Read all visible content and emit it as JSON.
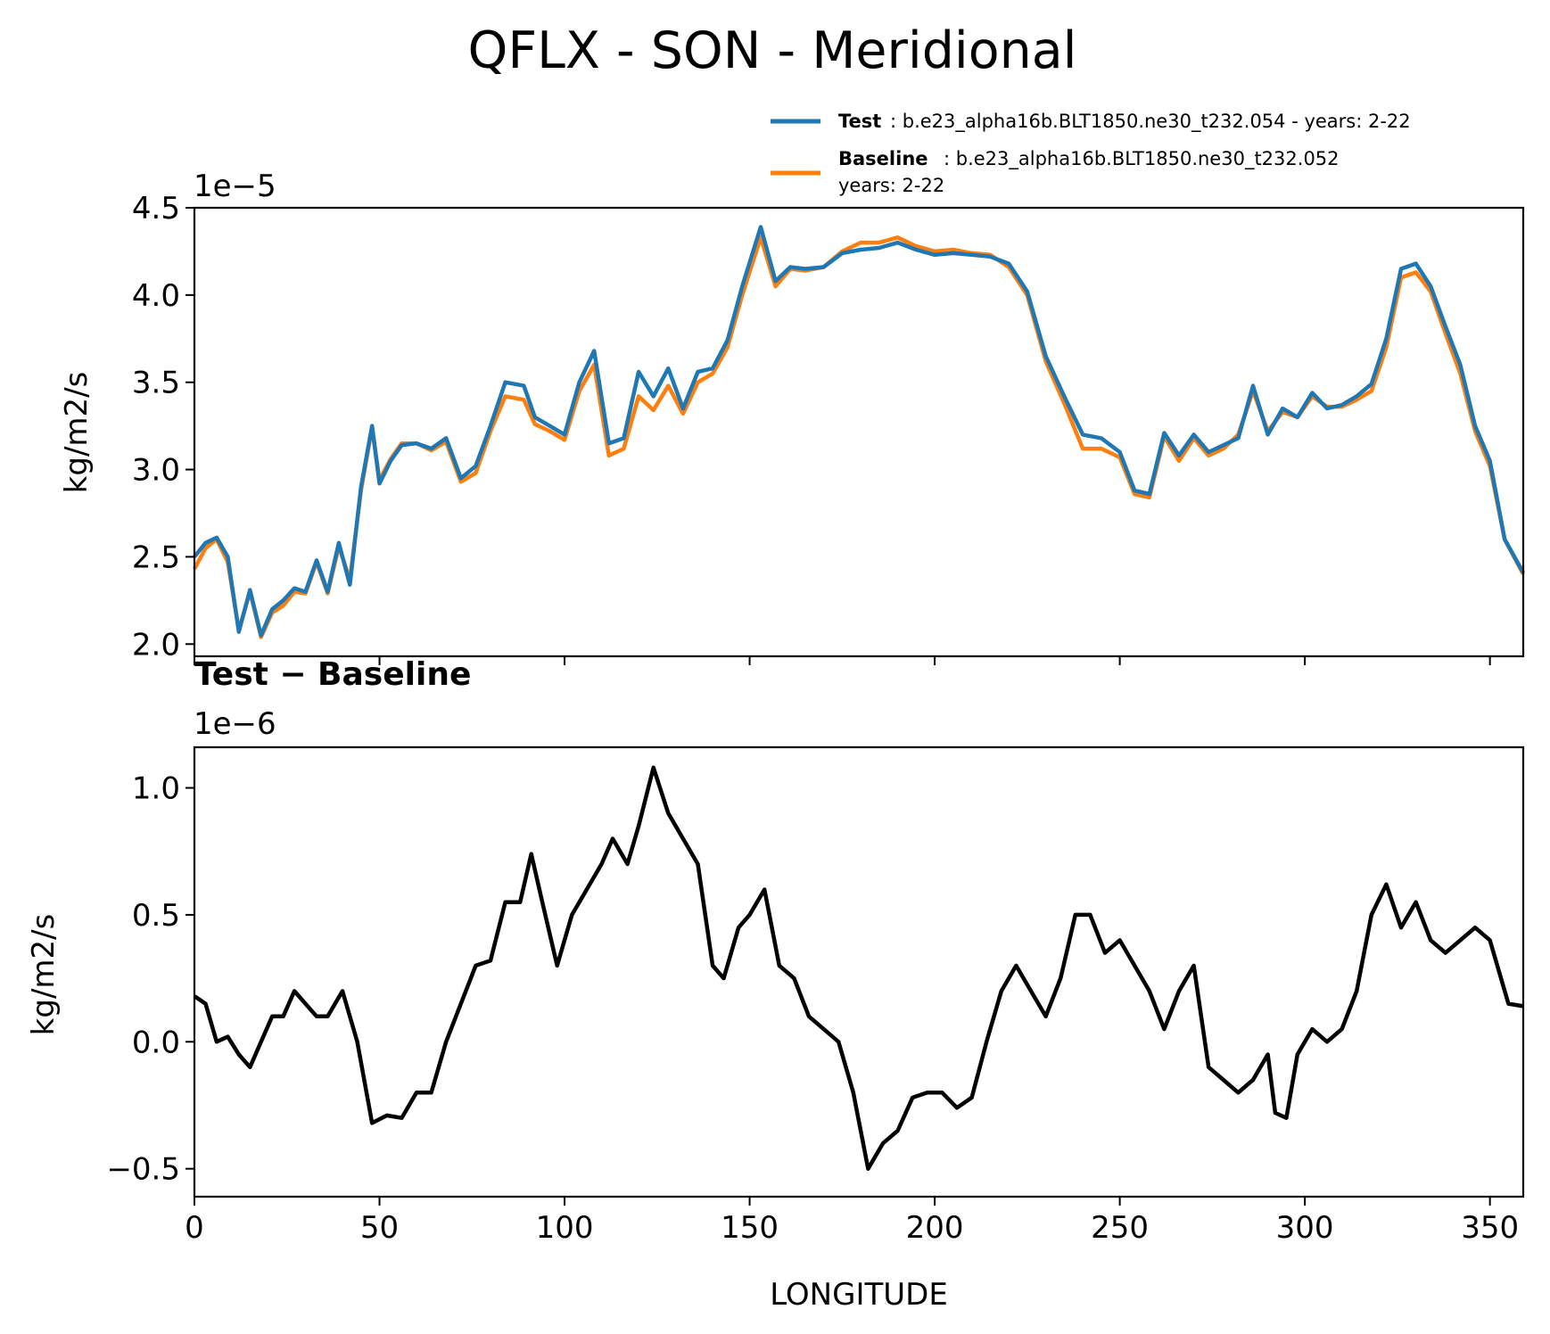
{
  "chart_data": [
    {
      "type": "line",
      "title": "QFLX - SON - Meridional",
      "xlabel": "",
      "ylabel": "kg/m2/s",
      "offset_text": "1e−5",
      "xlim": [
        0,
        359
      ],
      "ylim": [
        1.93,
        4.5
      ],
      "xticks": [
        0,
        50,
        100,
        150,
        200,
        250,
        300,
        350
      ],
      "yticks": [
        2.0,
        2.5,
        3.0,
        3.5,
        4.0,
        4.5
      ],
      "ytick_labels": [
        "2.0",
        "2.5",
        "3.0",
        "3.5",
        "4.0",
        "4.5"
      ],
      "legend": {
        "position": "upper-right",
        "entries": [
          {
            "name": "Test",
            "text": ": b.e23_alpha16b.BLT1850.ne30_t232.054 - years: 2-22",
            "color": "#1f77b4"
          },
          {
            "name": "Baseline",
            "text": ": b.e23_alpha16b.BLT1850.ne30_t232.052",
            "text2": "years: 2-22",
            "color": "#ff7f0e"
          }
        ]
      },
      "series": [
        {
          "name": "Test",
          "color": "#1f77b4",
          "x": [
            0,
            3,
            6,
            9,
            12,
            15,
            18,
            21,
            24,
            27,
            30,
            33,
            36,
            39,
            42,
            45,
            48,
            50,
            53,
            56,
            60,
            64,
            68,
            72,
            76,
            80,
            84,
            89,
            92,
            96,
            100,
            104,
            108,
            112,
            116,
            120,
            124,
            128,
            132,
            136,
            140,
            144,
            148,
            153,
            157,
            161,
            165,
            170,
            175,
            180,
            185,
            190,
            195,
            200,
            205,
            210,
            215,
            220,
            225,
            230,
            235,
            240,
            245,
            250,
            254,
            258,
            262,
            266,
            270,
            274,
            278,
            282,
            286,
            290,
            294,
            298,
            302,
            306,
            310,
            314,
            318,
            322,
            326,
            330,
            334,
            338,
            342,
            346,
            350,
            354,
            359
          ],
          "values": [
            2.5,
            2.58,
            2.61,
            2.5,
            2.07,
            2.31,
            2.05,
            2.2,
            2.25,
            2.32,
            2.3,
            2.48,
            2.3,
            2.58,
            2.34,
            2.9,
            3.25,
            2.92,
            3.05,
            3.14,
            3.15,
            3.12,
            3.18,
            2.95,
            3.02,
            3.25,
            3.5,
            3.48,
            3.3,
            3.25,
            3.2,
            3.5,
            3.68,
            3.15,
            3.18,
            3.56,
            3.42,
            3.58,
            3.35,
            3.56,
            3.58,
            3.74,
            4.05,
            4.39,
            4.08,
            4.16,
            4.15,
            4.16,
            4.24,
            4.26,
            4.27,
            4.3,
            4.26,
            4.23,
            4.24,
            4.23,
            4.22,
            4.18,
            4.02,
            3.65,
            3.42,
            3.2,
            3.18,
            3.1,
            2.88,
            2.86,
            3.21,
            3.08,
            3.2,
            3.1,
            3.14,
            3.18,
            3.48,
            3.2,
            3.35,
            3.3,
            3.44,
            3.35,
            3.37,
            3.42,
            3.49,
            3.75,
            4.15,
            4.18,
            4.05,
            3.82,
            3.6,
            3.25,
            3.05,
            2.6,
            2.41
          ]
        },
        {
          "name": "Baseline",
          "color": "#ff7f0e",
          "x": [
            0,
            3,
            6,
            9,
            12,
            15,
            18,
            21,
            24,
            27,
            30,
            33,
            36,
            39,
            42,
            45,
            48,
            50,
            53,
            56,
            60,
            64,
            68,
            72,
            76,
            80,
            84,
            89,
            92,
            96,
            100,
            104,
            108,
            112,
            116,
            120,
            124,
            128,
            132,
            136,
            140,
            144,
            148,
            153,
            157,
            161,
            165,
            170,
            175,
            180,
            185,
            190,
            195,
            200,
            205,
            210,
            215,
            220,
            225,
            230,
            235,
            240,
            245,
            250,
            254,
            258,
            262,
            266,
            270,
            274,
            278,
            282,
            286,
            290,
            294,
            298,
            302,
            306,
            310,
            314,
            318,
            322,
            326,
            330,
            334,
            338,
            342,
            346,
            350,
            354,
            359
          ],
          "values": [
            2.43,
            2.55,
            2.6,
            2.47,
            2.08,
            2.3,
            2.04,
            2.18,
            2.22,
            2.3,
            2.29,
            2.47,
            2.29,
            2.56,
            2.37,
            2.88,
            3.24,
            2.94,
            3.06,
            3.15,
            3.15,
            3.11,
            3.16,
            2.93,
            2.98,
            3.22,
            3.42,
            3.4,
            3.26,
            3.22,
            3.17,
            3.45,
            3.6,
            3.08,
            3.12,
            3.42,
            3.34,
            3.48,
            3.32,
            3.5,
            3.55,
            3.7,
            4.0,
            4.33,
            4.05,
            4.15,
            4.14,
            4.16,
            4.25,
            4.3,
            4.3,
            4.33,
            4.28,
            4.25,
            4.26,
            4.24,
            4.23,
            4.16,
            4.0,
            3.62,
            3.38,
            3.12,
            3.12,
            3.07,
            2.86,
            2.84,
            3.19,
            3.05,
            3.18,
            3.08,
            3.12,
            3.2,
            3.45,
            3.22,
            3.33,
            3.3,
            3.42,
            3.36,
            3.36,
            3.4,
            3.45,
            3.7,
            4.1,
            4.13,
            4.02,
            3.78,
            3.55,
            3.22,
            3.02,
            2.6,
            2.4
          ]
        }
      ]
    },
    {
      "type": "line",
      "title": "Test − Baseline",
      "xlabel": "LONGITUDE",
      "ylabel": "kg/m2/s",
      "offset_text": "1e−6",
      "xlim": [
        0,
        359
      ],
      "ylim": [
        -0.61,
        1.16
      ],
      "xticks": [
        0,
        50,
        100,
        150,
        200,
        250,
        300,
        350
      ],
      "xtick_labels": [
        "0",
        "50",
        "100",
        "150",
        "200",
        "250",
        "300",
        "350"
      ],
      "yticks": [
        -0.5,
        0.0,
        0.5,
        1.0
      ],
      "ytick_labels": [
        "−0.5",
        "0.0",
        "0.5",
        "1.0"
      ],
      "series": [
        {
          "name": "Test − Baseline",
          "color": "#000000",
          "x": [
            0,
            3,
            6,
            9,
            12,
            15,
            18,
            21,
            24,
            27,
            30,
            33,
            36,
            40,
            44,
            48,
            52,
            56,
            60,
            64,
            68,
            72,
            76,
            80,
            84,
            88,
            91,
            94,
            98,
            102,
            106,
            110,
            113,
            117,
            120,
            124,
            128,
            132,
            136,
            140,
            143,
            147,
            150,
            154,
            158,
            162,
            166,
            170,
            174,
            178,
            182,
            186,
            190,
            194,
            198,
            202,
            206,
            210,
            214,
            218,
            222,
            226,
            230,
            234,
            238,
            242,
            246,
            250,
            254,
            258,
            262,
            266,
            270,
            274,
            278,
            282,
            286,
            290,
            292,
            295,
            298,
            302,
            306,
            310,
            314,
            318,
            322,
            326,
            330,
            334,
            338,
            342,
            346,
            350,
            355,
            359
          ],
          "values": [
            0.18,
            0.15,
            0.0,
            0.02,
            -0.05,
            -0.1,
            0.0,
            0.1,
            0.1,
            0.2,
            0.15,
            0.1,
            0.1,
            0.2,
            0.0,
            -0.32,
            -0.29,
            -0.3,
            -0.2,
            -0.2,
            0.0,
            0.15,
            0.3,
            0.32,
            0.55,
            0.55,
            0.74,
            0.55,
            0.3,
            0.5,
            0.6,
            0.7,
            0.8,
            0.7,
            0.85,
            1.08,
            0.9,
            0.8,
            0.7,
            0.3,
            0.25,
            0.45,
            0.5,
            0.6,
            0.3,
            0.25,
            0.1,
            0.05,
            0.0,
            -0.2,
            -0.5,
            -0.4,
            -0.35,
            -0.22,
            -0.2,
            -0.2,
            -0.26,
            -0.22,
            0.0,
            0.2,
            0.3,
            0.2,
            0.1,
            0.25,
            0.5,
            0.5,
            0.35,
            0.4,
            0.3,
            0.2,
            0.05,
            0.2,
            0.3,
            -0.1,
            -0.15,
            -0.2,
            -0.15,
            -0.05,
            -0.28,
            -0.3,
            -0.05,
            0.05,
            0.0,
            0.05,
            0.2,
            0.5,
            0.62,
            0.45,
            0.55,
            0.4,
            0.35,
            0.4,
            0.45,
            0.4,
            0.15,
            0.14
          ]
        }
      ]
    }
  ]
}
